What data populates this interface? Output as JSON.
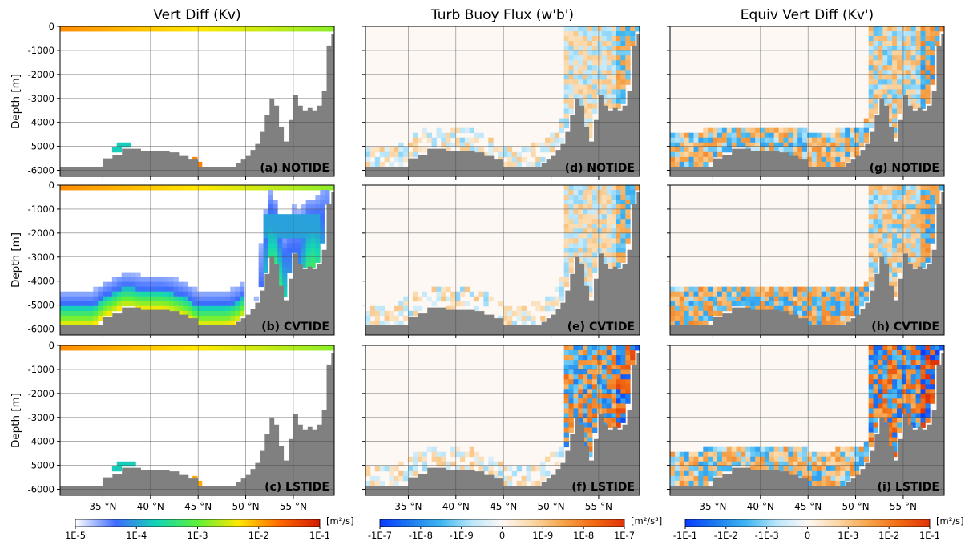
{
  "chart_data": {
    "type": "heatmap",
    "column_titles": [
      "Vert Diff (Kv)",
      "Turb Buoy Flux (w'b')",
      "Equiv Vert Diff (Kv')"
    ],
    "ylabel": "Depth [m]",
    "ylim": [
      -6250,
      0
    ],
    "yticks": [
      0,
      -1000,
      -2000,
      -3000,
      -4000,
      -5000,
      -6000
    ],
    "ytick_labels": [
      "0",
      "-1000",
      "-2000",
      "-3000",
      "-4000",
      "-5000",
      "-6000"
    ],
    "xlim": [
      30.5,
      59.3
    ],
    "xticks": [
      35,
      40,
      45,
      50,
      55
    ],
    "xtick_labels": [
      "35 °N",
      "40 °N",
      "45 °N",
      "50 °N",
      "55 °N"
    ],
    "grid": true,
    "rows": [
      "NOTIDE",
      "CVTIDE",
      "LSTIDE"
    ],
    "panel_labels": [
      [
        "(a) NOTIDE",
        "(d) NOTIDE",
        "(g) NOTIDE"
      ],
      [
        "(b) CVTIDE",
        "(e) CVTIDE",
        "(h) CVTIDE"
      ],
      [
        "(c) LSTIDE",
        "(f) LSTIDE",
        "(i) LSTIDE"
      ]
    ],
    "colorbars": [
      {
        "units": "[m²/s]",
        "ticks": [
          "1E-5",
          "1E-4",
          "1E-3",
          "1E-2",
          "1E-1"
        ],
        "scale": "log"
      },
      {
        "units": "[m²/s³]",
        "ticks": [
          "-1E-7",
          "-1E-8",
          "-1E-9",
          "0",
          "1E-9",
          "1E-8",
          "1E-7"
        ],
        "scale": "symlog"
      },
      {
        "units": "[m²/s]",
        "ticks": [
          "-1E-1",
          "-1E-2",
          "-1E-3",
          "0",
          "1E-3",
          "1E-2",
          "1E-1"
        ],
        "scale": "symlog"
      }
    ],
    "bathymetry": {
      "lat": [
        30.5,
        31.0,
        32.0,
        33.0,
        34.0,
        35.0,
        36.0,
        37.0,
        38.0,
        39.0,
        40.0,
        41.0,
        42.0,
        43.0,
        44.0,
        45.0,
        46.0,
        47.0,
        48.0,
        49.0,
        49.5,
        50.0,
        50.5,
        51.0,
        51.5,
        52.0,
        52.5,
        53.0,
        53.5,
        54.0,
        54.5,
        55.0,
        55.5,
        56.0,
        56.5,
        57.0,
        57.5,
        58.0,
        58.5,
        59.0,
        59.3
      ],
      "depth": [
        5850,
        5850,
        5850,
        5850,
        5850,
        5500,
        5350,
        5100,
        5100,
        5200,
        5200,
        5200,
        5250,
        5400,
        5550,
        5850,
        5850,
        5850,
        5850,
        5700,
        5550,
        5400,
        5150,
        4900,
        4400,
        3700,
        3000,
        3300,
        4200,
        4800,
        3900,
        2850,
        3300,
        3500,
        3400,
        3500,
        3300,
        2700,
        800,
        300,
        200
      ]
    },
    "colors": {
      "land": "#808080",
      "grid": "#444444",
      "background": "#fdf8f4"
    }
  }
}
